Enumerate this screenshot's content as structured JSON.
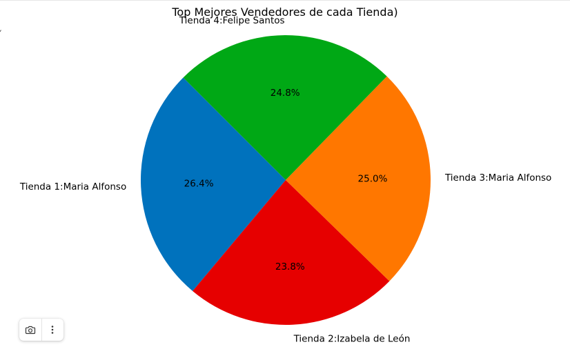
{
  "chart_data": {
    "type": "pie",
    "title": "Top Mejores Vendedores de cada Tienda)",
    "labels": [
      "Tienda 1:Maria Alfonso",
      "Tienda 2:Izabela de León",
      "Tienda 3:Maria Alfonso",
      "Tienda 4:Felipe Santos"
    ],
    "values": [
      26.4,
      23.8,
      25.0,
      24.8
    ],
    "value_labels": [
      "26.4%",
      "23.8%",
      "25.0%",
      "24.8%"
    ],
    "colors": [
      "#0072bd",
      "#e60000",
      "#ff7700",
      "#00a815"
    ],
    "start_angle_deg": 135,
    "direction": "counterclockwise"
  },
  "toolbar": {
    "icons": [
      "camera-icon",
      "more-vertical-icon"
    ]
  }
}
